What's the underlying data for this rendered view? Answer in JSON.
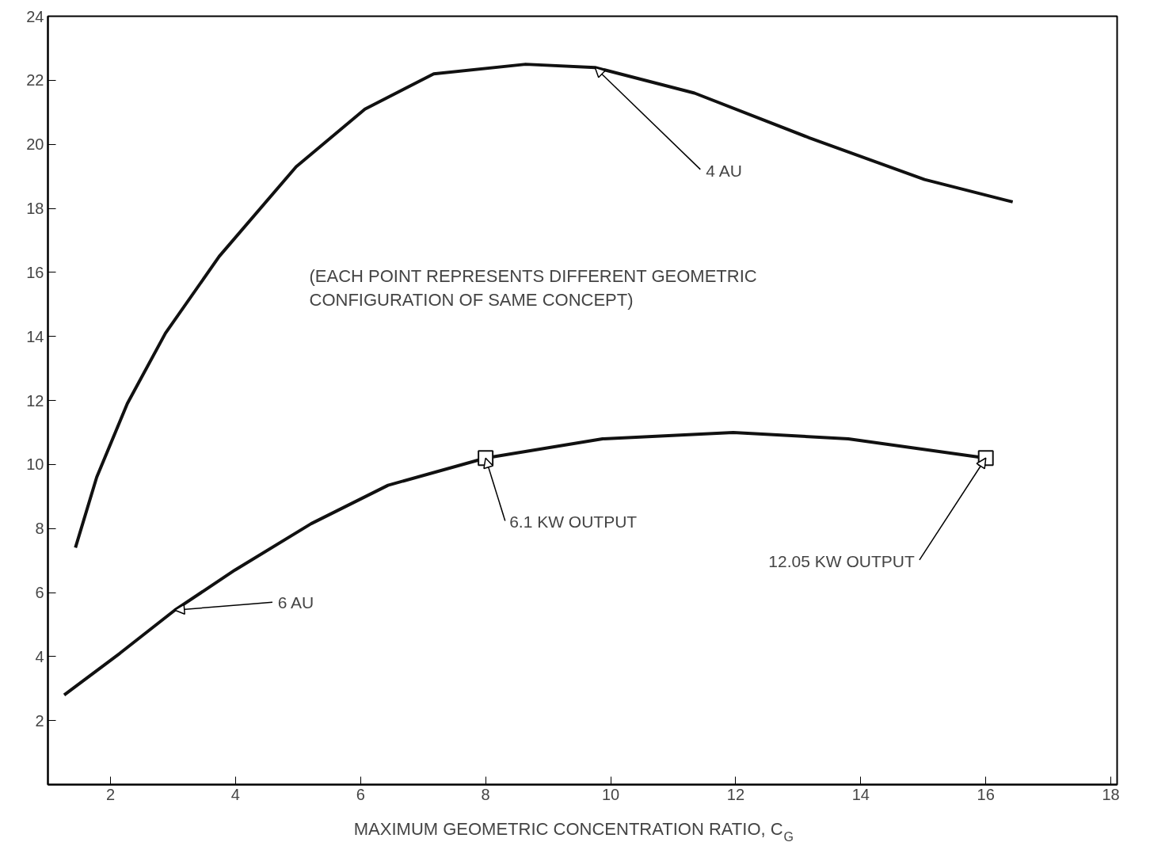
{
  "chart_data": {
    "type": "line",
    "xlabel": "MAXIMUM GEOMETRIC CONCENTRATION RATIO, C$_{G}$",
    "xlim": [
      1,
      18.1
    ],
    "ylim": [
      0,
      24
    ],
    "xticks": [
      2,
      4,
      6,
      8,
      10,
      12,
      14,
      16,
      18
    ],
    "yticks": [
      2,
      4,
      6,
      8,
      10,
      12,
      14,
      16,
      18,
      20,
      22,
      24
    ],
    "grid": false,
    "marker": "none",
    "line_style": "solid",
    "series": [
      {
        "color": "#111111",
        "x": [
          1.44,
          1.78,
          2.27,
          2.88,
          3.74,
          4.97,
          6.07,
          7.17,
          8.64,
          9.75,
          11.34,
          13.18,
          15.02,
          16.43
        ],
        "values": [
          7.4,
          9.6,
          11.9,
          14.1,
          16.5,
          19.3,
          21.1,
          22.2,
          22.5,
          22.4,
          21.6,
          20.2,
          18.9,
          18.2
        ]
      },
      {
        "color": "#111111",
        "x": [
          1.26,
          2.15,
          3.03,
          3.99,
          5.21,
          6.44,
          8.0,
          9.87,
          11.96,
          13.8,
          16.0
        ],
        "values": [
          2.8,
          4.1,
          5.45,
          6.7,
          8.15,
          9.35,
          10.2,
          10.8,
          11.0,
          10.8,
          10.2
        ]
      },
      {
        "type": "scatter",
        "marker": "square",
        "color": "#111111",
        "x": [
          8.0,
          16.0
        ],
        "values": [
          10.2,
          10.2
        ]
      }
    ],
    "annotations": [
      {
        "text": "4 AU",
        "x": 9.75,
        "y": 22.4
      },
      {
        "text": "6 AU",
        "x": 3.03,
        "y": 5.45
      },
      {
        "text": "6.1 KW OUTPUT",
        "x": 8.0,
        "y": 10.2
      },
      {
        "text": "12.05 KW OUTPUT",
        "x": 16.0,
        "y": 10.2
      },
      "(EACH POINT REPRESENTS DIFFERENT GEOMETRIC\nCONFIGURATION OF SAME CONCEPT)"
    ]
  }
}
